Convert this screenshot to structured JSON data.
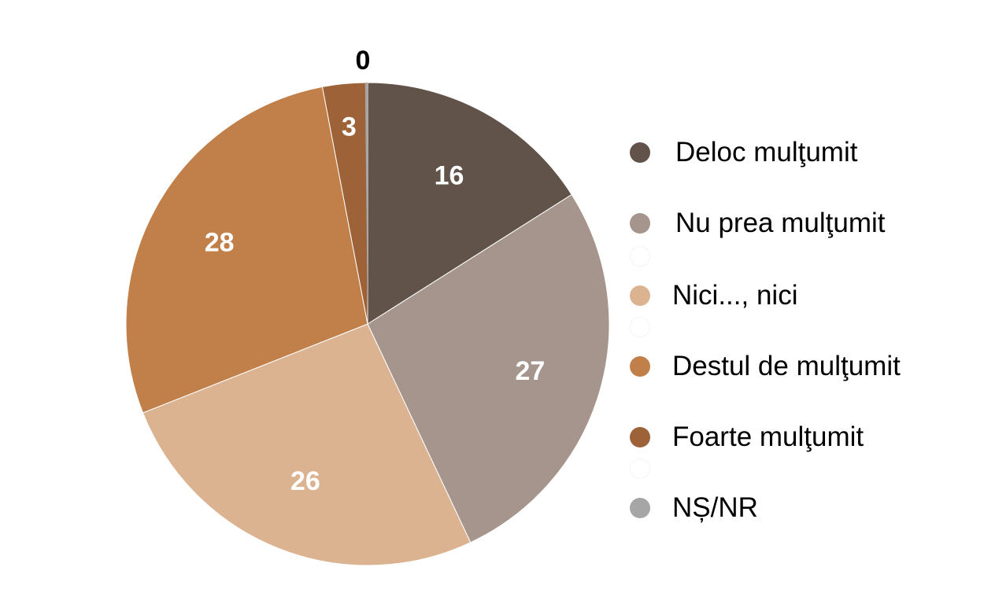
{
  "chart_data": {
    "type": "pie",
    "title": "",
    "categories": [
      "Deloc mulţumit",
      "Nu prea mulţumit",
      "Nici..., nici",
      "Destul de mulţumit",
      "Foarte mulţumit",
      "NȘ/NR"
    ],
    "values": [
      16,
      27,
      26,
      28,
      3,
      0
    ],
    "value_labels": [
      "16",
      "27",
      "26",
      "28",
      "3",
      "0"
    ],
    "colors": [
      "#61524A",
      "#A5958C",
      "#DBB390",
      "#C17F49",
      "#9D6237",
      "#A6A6A6"
    ],
    "start_angle": "12 o'clock",
    "direction": "clockwise",
    "legend_position": "right"
  },
  "legend": {
    "items": [
      {
        "label": "Deloc mulţumit",
        "color": "#61524A"
      },
      {
        "label": "Nu prea mulţumit",
        "color": "#A5958C"
      },
      {
        "label": "Nici..., nici",
        "color": "#DBB390"
      },
      {
        "label": "Destul de mulţumit",
        "color": "#C17F49"
      },
      {
        "label": "Foarte mulţumit",
        "color": "#9D6237"
      },
      {
        "label": "NȘ/NR",
        "color": "#A6A6A6"
      }
    ]
  }
}
